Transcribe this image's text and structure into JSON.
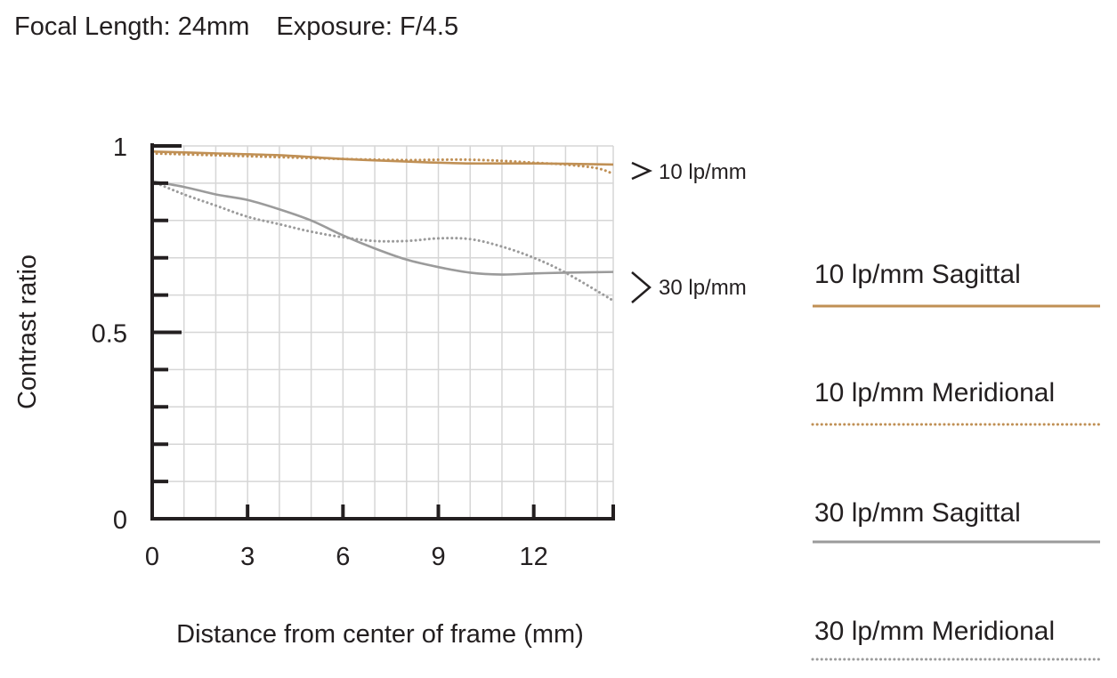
{
  "header": {
    "focal_length": "Focal Length: 24mm",
    "exposure": "Exposure: F/4.5"
  },
  "chart_data": {
    "type": "line",
    "xlabel": "Distance from center of frame (mm)",
    "ylabel": "Contrast ratio",
    "xlim": [
      0,
      14.5
    ],
    "ylim": [
      0,
      1
    ],
    "x_ticks": [
      "0",
      "3",
      "6",
      "9",
      "12"
    ],
    "y_ticks": [
      "0",
      "0.5",
      "1"
    ],
    "grid": true,
    "annotations": [
      "10 lp/mm",
      "30 lp/mm"
    ],
    "series": [
      {
        "name": "10 lp/mm Sagittal",
        "color": "#c09055",
        "style": "solid",
        "x": [
          0,
          2,
          4,
          6,
          8,
          9,
          10,
          11,
          12,
          13,
          14.5
        ],
        "y": [
          0.985,
          0.98,
          0.975,
          0.965,
          0.958,
          0.955,
          0.953,
          0.953,
          0.953,
          0.952,
          0.95
        ]
      },
      {
        "name": "10 lp/mm Meridional",
        "color": "#c09055",
        "style": "dotted",
        "x": [
          0,
          2,
          4,
          6,
          8,
          9,
          10,
          11,
          12,
          13,
          14,
          14.5
        ],
        "y": [
          0.98,
          0.975,
          0.97,
          0.965,
          0.962,
          0.963,
          0.963,
          0.96,
          0.955,
          0.95,
          0.94,
          0.925
        ]
      },
      {
        "name": "30 lp/mm Sagittal",
        "color": "#9b9b9b",
        "style": "solid",
        "x": [
          0,
          1,
          2,
          3,
          4,
          5,
          6,
          7,
          8,
          9,
          10,
          11,
          12,
          13,
          14.5
        ],
        "y": [
          0.905,
          0.89,
          0.87,
          0.855,
          0.83,
          0.8,
          0.76,
          0.725,
          0.695,
          0.675,
          0.66,
          0.655,
          0.658,
          0.66,
          0.662
        ]
      },
      {
        "name": "30 lp/mm Meridional",
        "color": "#9b9b9b",
        "style": "dotted",
        "x": [
          0,
          1,
          2,
          3,
          4,
          5,
          6,
          7,
          8,
          9,
          10,
          11,
          12,
          13,
          14.5
        ],
        "y": [
          0.905,
          0.87,
          0.84,
          0.81,
          0.79,
          0.77,
          0.755,
          0.745,
          0.745,
          0.752,
          0.75,
          0.73,
          0.7,
          0.66,
          0.585
        ]
      }
    ]
  },
  "legend": [
    {
      "label": "10 lp/mm Sagittal",
      "color": "#c09055",
      "style": "solid"
    },
    {
      "label": "10 lp/mm Meridional",
      "color": "#c09055",
      "style": "dotted"
    },
    {
      "label": "30 lp/mm Sagittal",
      "color": "#9b9b9b",
      "style": "solid"
    },
    {
      "label": "30 lp/mm Meridional",
      "color": "#9b9b9b",
      "style": "dotted"
    }
  ]
}
